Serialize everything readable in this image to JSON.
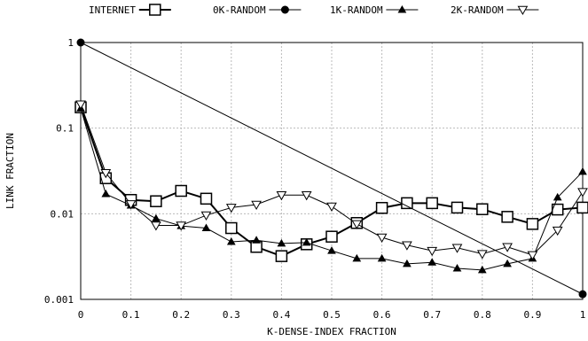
{
  "chart_data": {
    "type": "line",
    "xlabel": "K-DENSE-INDEX FRACTION",
    "ylabel": "LINK FRACTION",
    "xlim": [
      0,
      1
    ],
    "ylim": [
      0.001,
      1
    ],
    "yscale": "log",
    "grid": true,
    "legend_position": "top",
    "x_ticks": [
      0,
      0.1,
      0.2,
      0.3,
      0.4,
      0.5,
      0.6,
      0.7,
      0.8,
      0.9,
      1
    ],
    "x_tick_labels": [
      "0",
      "0.1",
      "0.2",
      "0.3",
      "0.4",
      "0.5",
      "0.6",
      "0.7",
      "0.8",
      "0.9",
      "1"
    ],
    "y_ticks": [
      0.001,
      0.01,
      0.1,
      1
    ],
    "y_tick_labels": [
      "0.001",
      "0.01",
      "0.1",
      "1"
    ],
    "series": [
      {
        "name": "INTERNET",
        "marker": "square-open",
        "line_width": 2,
        "x": [
          0,
          0.05,
          0.1,
          0.15,
          0.2,
          0.25,
          0.3,
          0.35,
          0.4,
          0.45,
          0.5,
          0.55,
          0.6,
          0.65,
          0.7,
          0.75,
          0.8,
          0.85,
          0.9,
          0.95,
          1
        ],
        "y": [
          0.175,
          0.026,
          0.0145,
          0.014,
          0.0185,
          0.015,
          0.0068,
          0.0041,
          0.0032,
          0.0044,
          0.0054,
          0.0078,
          0.0117,
          0.0133,
          0.0133,
          0.0118,
          0.0113,
          0.0092,
          0.0076,
          0.0112,
          0.0118
        ]
      },
      {
        "name": "0K-RANDOM",
        "marker": "circle-filled",
        "line_width": 1,
        "x": [
          0,
          1
        ],
        "y": [
          1,
          0.00115
        ]
      },
      {
        "name": "1K-RANDOM",
        "marker": "triangle-filled",
        "line_width": 1,
        "x": [
          0,
          0.05,
          0.1,
          0.15,
          0.2,
          0.25,
          0.3,
          0.35,
          0.4,
          0.45,
          0.5,
          0.55,
          0.6,
          0.65,
          0.7,
          0.75,
          0.8,
          0.85,
          0.9,
          0.95,
          1
        ],
        "y": [
          0.17,
          0.017,
          0.0125,
          0.0088,
          0.0072,
          0.0068,
          0.0047,
          0.0049,
          0.0045,
          0.0046,
          0.0037,
          0.003,
          0.003,
          0.0026,
          0.0027,
          0.0023,
          0.0022,
          0.0026,
          0.003,
          0.0155,
          0.031
        ]
      },
      {
        "name": "2K-RANDOM",
        "marker": "triangle-down-open",
        "line_width": 1,
        "x": [
          0,
          0.05,
          0.1,
          0.15,
          0.2,
          0.25,
          0.3,
          0.35,
          0.4,
          0.45,
          0.5,
          0.55,
          0.6,
          0.65,
          0.7,
          0.75,
          0.8,
          0.85,
          0.9,
          0.95,
          1
        ],
        "y": [
          0.19,
          0.03,
          0.013,
          0.0073,
          0.0073,
          0.0096,
          0.0118,
          0.0128,
          0.0165,
          0.0165,
          0.0122,
          0.0076,
          0.0053,
          0.0043,
          0.0037,
          0.004,
          0.0034,
          0.0041,
          0.0033,
          0.0064,
          0.018
        ]
      }
    ]
  }
}
